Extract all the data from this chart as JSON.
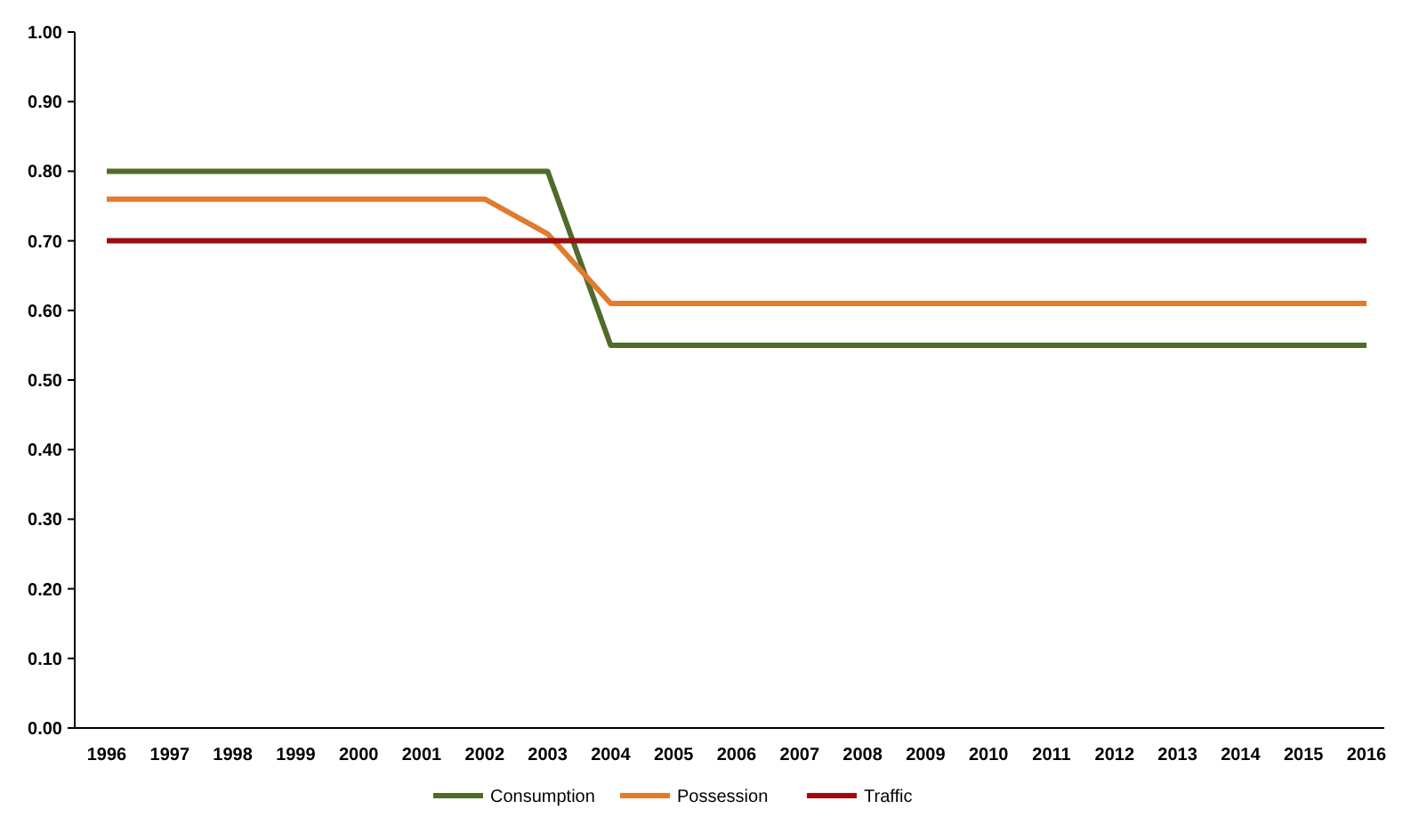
{
  "chart_data": {
    "type": "line",
    "categories": [
      "1996",
      "1997",
      "1998",
      "1999",
      "2000",
      "2001",
      "2002",
      "2003",
      "2004",
      "2005",
      "2006",
      "2007",
      "2008",
      "2009",
      "2010",
      "2011",
      "2012",
      "2013",
      "2014",
      "2015",
      "2016"
    ],
    "series": [
      {
        "name": "Consumption",
        "color": "#4f6b2a",
        "values": [
          0.8,
          0.8,
          0.8,
          0.8,
          0.8,
          0.8,
          0.8,
          0.8,
          0.55,
          0.55,
          0.55,
          0.55,
          0.55,
          0.55,
          0.55,
          0.55,
          0.55,
          0.55,
          0.55,
          0.55,
          0.55
        ]
      },
      {
        "name": "Possession",
        "color": "#e07b2f",
        "values": [
          0.76,
          0.76,
          0.76,
          0.76,
          0.76,
          0.76,
          0.76,
          0.71,
          0.61,
          0.61,
          0.61,
          0.61,
          0.61,
          0.61,
          0.61,
          0.61,
          0.61,
          0.61,
          0.61,
          0.61,
          0.61
        ]
      },
      {
        "name": "Traffic",
        "color": "#9b0d10",
        "values": [
          0.7,
          0.7,
          0.7,
          0.7,
          0.7,
          0.7,
          0.7,
          0.7,
          0.7,
          0.7,
          0.7,
          0.7,
          0.7,
          0.7,
          0.7,
          0.7,
          0.7,
          0.7,
          0.7,
          0.7,
          0.7
        ]
      }
    ],
    "ylim": [
      0,
      1
    ],
    "yticks": [
      {
        "value": 0,
        "label": "0.00"
      },
      {
        "value": 0.1,
        "label": "0.10"
      },
      {
        "value": 0.2,
        "label": "0.20"
      },
      {
        "value": 0.3,
        "label": "0.30"
      },
      {
        "value": 0.4,
        "label": "0.40"
      },
      {
        "value": 0.5,
        "label": "0.50"
      },
      {
        "value": 0.6,
        "label": "0.60"
      },
      {
        "value": 0.7,
        "label": "0.70"
      },
      {
        "value": 0.8,
        "label": "0.80"
      },
      {
        "value": 0.9,
        "label": "0.90"
      },
      {
        "value": 1,
        "label": "1.00"
      }
    ],
    "grid": false,
    "legend": "bottom",
    "marker": "none",
    "line_style": "solid"
  }
}
